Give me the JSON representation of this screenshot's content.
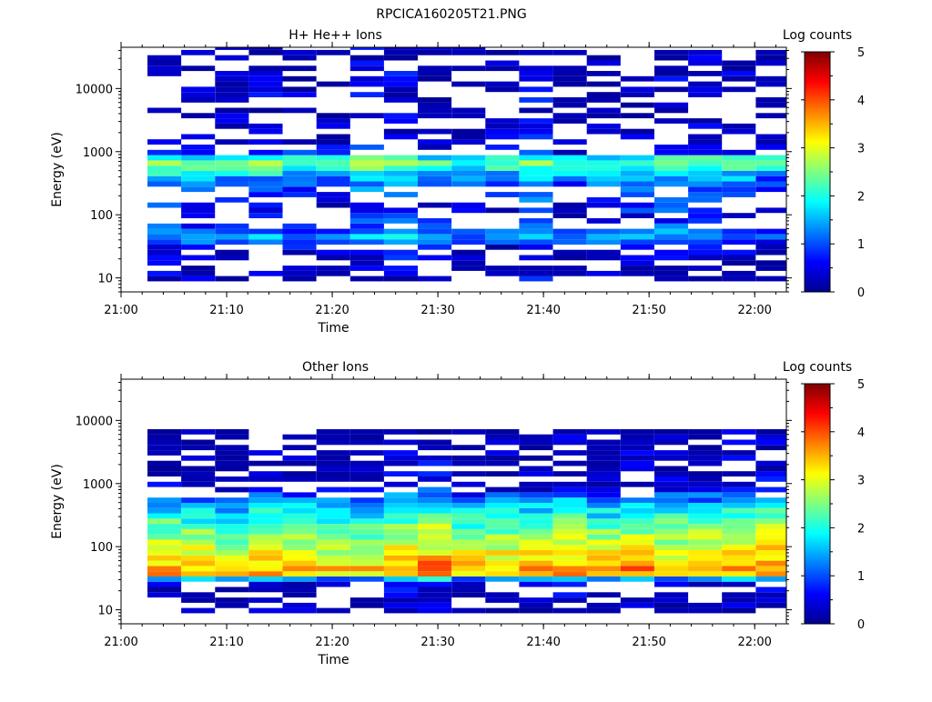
{
  "figure_title": "RPCICA160205T21.PNG",
  "chart_data": [
    {
      "type": "heatmap",
      "title": "H+ He++ Ions",
      "xlabel": "Time",
      "ylabel": "Energy (eV)",
      "x_ticks": [
        "21:00",
        "21:10",
        "21:20",
        "21:30",
        "21:40",
        "21:50",
        "22:00"
      ],
      "x_range": [
        "21:00",
        "22:03"
      ],
      "y_scale": "log",
      "y_ticks": [
        "10",
        "100",
        "1000",
        "10000"
      ],
      "y_range": [
        6,
        45000
      ],
      "colorbar": {
        "label": "Log counts",
        "ticks": [
          "0",
          "1",
          "2",
          "3",
          "4",
          "5"
        ],
        "range": [
          0,
          5
        ]
      },
      "columns_start": "21:02.5",
      "column_minutes": 3.2,
      "bins_per_decade": 12,
      "profile": [
        {
          "e": 6,
          "v": -1
        },
        {
          "e": 9,
          "v": 0.25
        },
        {
          "e": 14,
          "v": 0.15
        },
        {
          "e": 22,
          "v": 0.3
        },
        {
          "e": 30,
          "v": 0.5
        },
        {
          "e": 36,
          "v": 1.0
        },
        {
          "e": 45,
          "v": 1.35
        },
        {
          "e": 60,
          "v": 0.9
        },
        {
          "e": 100,
          "v": 0.55
        },
        {
          "e": 200,
          "v": 0.85
        },
        {
          "e": 350,
          "v": 1.2
        },
        {
          "e": 500,
          "v": 1.9
        },
        {
          "e": 650,
          "v": 2.5
        },
        {
          "e": 800,
          "v": 2.0
        },
        {
          "e": 1000,
          "v": 0.6
        },
        {
          "e": 2000,
          "v": 0.3
        },
        {
          "e": 45000,
          "v": 0.15
        }
      ],
      "sparsity": 0.5
    },
    {
      "type": "heatmap",
      "title": "Other Ions",
      "xlabel": "Time",
      "ylabel": "Energy (eV)",
      "x_ticks": [
        "21:00",
        "21:10",
        "21:20",
        "21:30",
        "21:40",
        "21:50",
        "22:00"
      ],
      "x_range": [
        "21:00",
        "22:03"
      ],
      "y_scale": "log",
      "y_ticks": [
        "10",
        "100",
        "1000",
        "10000"
      ],
      "y_range": [
        6,
        45000
      ],
      "colorbar": {
        "label": "Log counts",
        "ticks": [
          "0",
          "1",
          "2",
          "3",
          "4",
          "5"
        ],
        "range": [
          0,
          5
        ]
      },
      "columns_start": "21:02.5",
      "column_minutes": 3.2,
      "bins_per_decade": 12,
      "profile": [
        {
          "e": 6,
          "v": -1
        },
        {
          "e": 10,
          "v": 0.15
        },
        {
          "e": 20,
          "v": 0.2
        },
        {
          "e": 27,
          "v": 0.3
        },
        {
          "e": 30,
          "v": 1.1
        },
        {
          "e": 35,
          "v": 3.4
        },
        {
          "e": 42,
          "v": 3.6
        },
        {
          "e": 60,
          "v": 3.3
        },
        {
          "e": 100,
          "v": 2.9
        },
        {
          "e": 200,
          "v": 2.4
        },
        {
          "e": 400,
          "v": 1.8
        },
        {
          "e": 650,
          "v": 1.0
        },
        {
          "e": 900,
          "v": 0.4
        },
        {
          "e": 1500,
          "v": 0.15
        },
        {
          "e": 6000,
          "v": 0.1
        },
        {
          "e": 45000,
          "v": -1
        }
      ],
      "sparsity": 0.35
    }
  ]
}
